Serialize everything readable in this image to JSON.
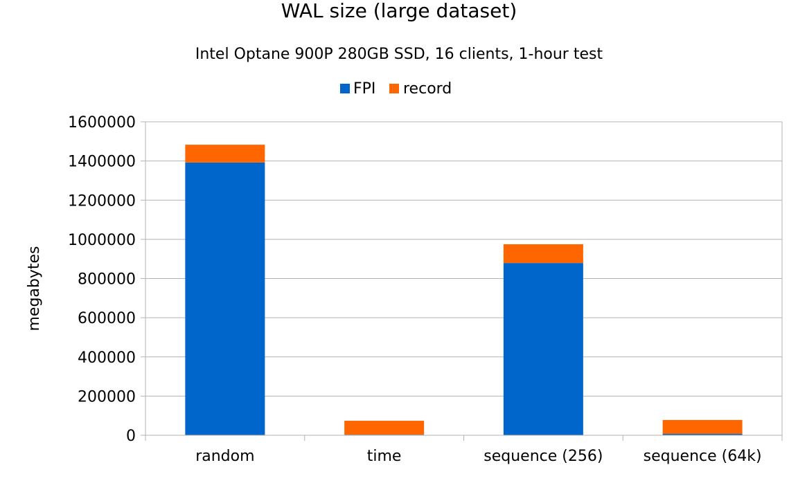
{
  "chart_data": {
    "type": "bar",
    "stacked": true,
    "title": "WAL size (large dataset)",
    "subtitle": "Intel Optane 900P 280GB SSD, 16 clients, 1-hour test",
    "xlabel": "",
    "ylabel": "megabytes",
    "ylim": [
      0,
      1600000
    ],
    "yticks": [
      0,
      200000,
      400000,
      600000,
      800000,
      1000000,
      1200000,
      1400000,
      1600000
    ],
    "grid": true,
    "legend_position": "top",
    "categories": [
      "random",
      "time",
      "sequence (256)",
      "sequence (64k)"
    ],
    "series": [
      {
        "name": "FPI",
        "color": "#0066cc",
        "values": [
          1392000,
          3000,
          879000,
          7000
        ]
      },
      {
        "name": "record",
        "color": "#ff6600",
        "values": [
          91000,
          71000,
          96000,
          71000
        ]
      }
    ]
  }
}
